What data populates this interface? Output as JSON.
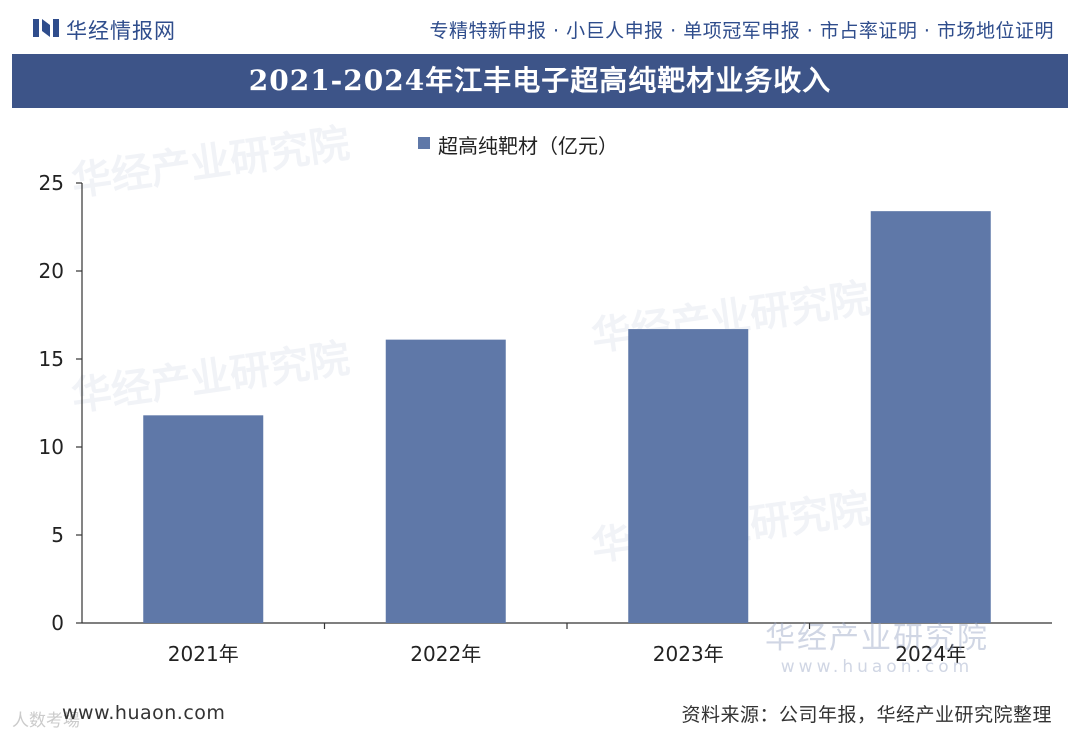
{
  "header": {
    "brand": "华经情报网",
    "services": "专精特新申报 · 小巨人申报 · 单项冠军申报 · 市占率证明 · 市场地位证明"
  },
  "chart_data": {
    "type": "bar",
    "title": "2021-2024年江丰电子超高纯靶材业务收入",
    "categories": [
      "2021年",
      "2022年",
      "2023年",
      "2024年"
    ],
    "series": [
      {
        "name": "超高纯靶材（亿元）",
        "values": [
          11.8,
          16.1,
          16.7,
          23.4
        ]
      }
    ],
    "ylim": [
      0,
      25
    ],
    "yticks": [
      "0",
      "5",
      "10",
      "15",
      "20",
      "25"
    ],
    "xlabel": "",
    "ylabel": "",
    "grid": false,
    "legend_position": "top-center",
    "bar_color": "#5f78a8"
  },
  "watermarks": {
    "diagonal": "华经产业研究院",
    "site_cn": "华经产业研究院",
    "site_en": "www.huaon.com",
    "corner": "人数考場"
  },
  "footer": {
    "website": "www.huaon.com",
    "source": "资料来源：公司年报，华经产业研究院整理"
  }
}
